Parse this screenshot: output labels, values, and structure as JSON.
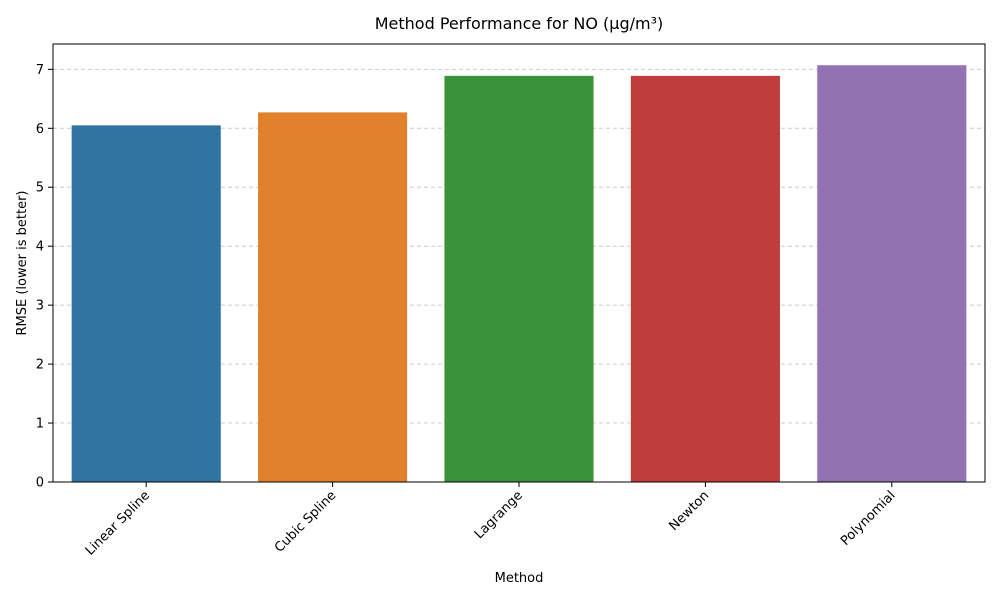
{
  "chart_data": {
    "type": "bar",
    "title": "Method Performance for NO (μg/m³)",
    "xlabel": "Method",
    "ylabel": "RMSE (lower is better)",
    "categories": [
      "Linear Spline",
      "Cubic Spline",
      "Lagrange",
      "Newton",
      "Polynomial"
    ],
    "values": [
      6.05,
      6.27,
      6.89,
      6.89,
      7.07
    ],
    "colors": [
      "#3274a1",
      "#e1812c",
      "#3a923a",
      "#c03d3e",
      "#9372b2"
    ],
    "ylim": [
      0,
      7.43
    ],
    "yticks": [
      "0",
      "1",
      "2",
      "3",
      "4",
      "5",
      "6",
      "7"
    ],
    "grid": "y-dashed",
    "legend": "none"
  }
}
